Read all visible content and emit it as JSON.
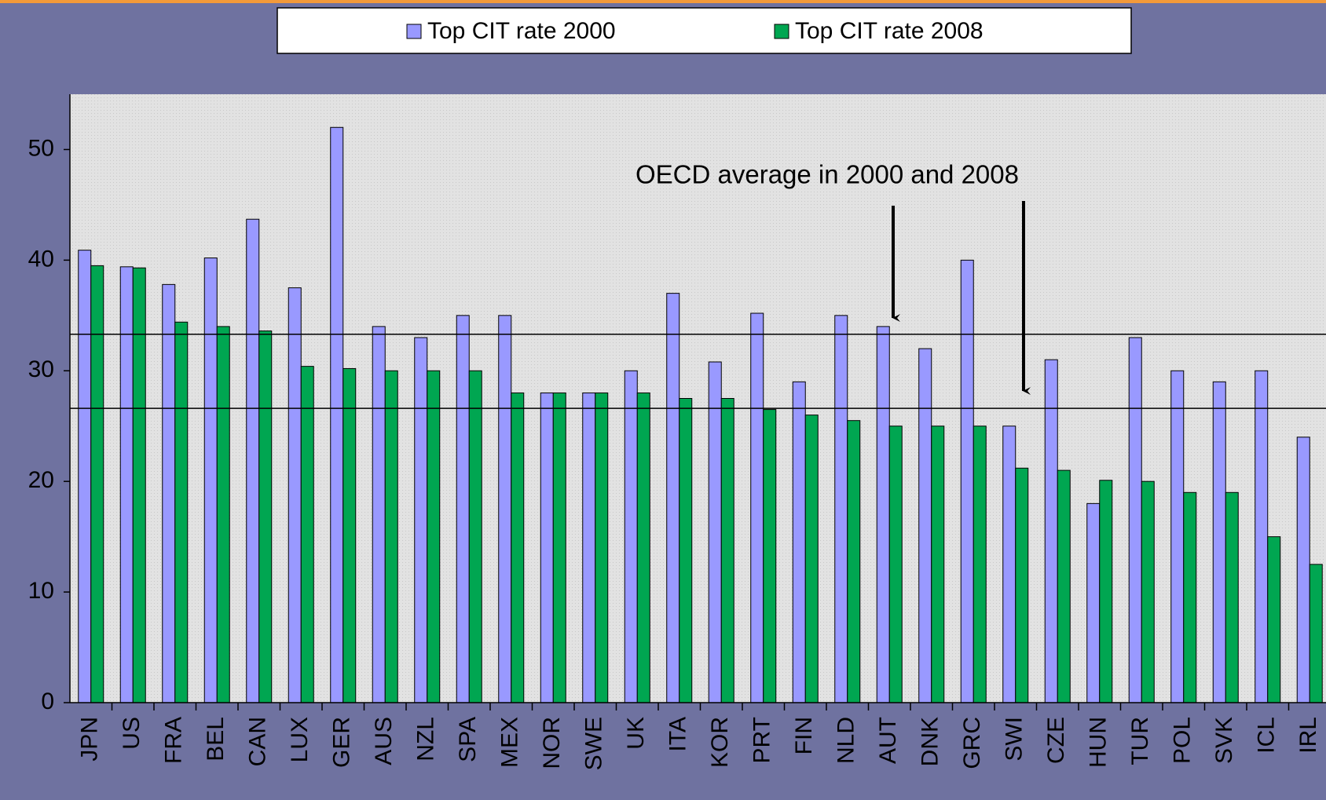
{
  "chart_data": {
    "type": "bar",
    "categories": [
      "JPN",
      "US",
      "FRA",
      "BEL",
      "CAN",
      "LUX",
      "GER",
      "AUS",
      "NZL",
      "SPA",
      "MEX",
      "NOR",
      "SWE",
      "UK",
      "ITA",
      "KOR",
      "PRT",
      "FIN",
      "NLD",
      "AUT",
      "DNK",
      "GRC",
      "SWI",
      "CZE",
      "HUN",
      "TUR",
      "POL",
      "SVK",
      "ICL",
      "IRL"
    ],
    "series": [
      {
        "name": "Top CIT rate 2000",
        "color": "#9999ff",
        "values": [
          40.9,
          39.4,
          37.8,
          40.2,
          43.7,
          37.5,
          52,
          34,
          33,
          35,
          35,
          28,
          28,
          30,
          37,
          30.8,
          35.2,
          29,
          35,
          34,
          32,
          40,
          25,
          31,
          18,
          33,
          30,
          29,
          30,
          24
        ]
      },
      {
        "name": "Top CIT rate 2008",
        "color": "#00a651",
        "values": [
          39.5,
          39.3,
          34.4,
          34,
          33.6,
          30.4,
          30.2,
          30,
          30,
          30,
          28,
          28,
          28,
          28,
          27.5,
          27.5,
          26.5,
          26,
          25.5,
          25,
          25,
          25,
          21.2,
          21,
          20.1,
          20,
          19,
          19,
          15,
          12.5
        ]
      }
    ],
    "reference_lines": [
      33.3,
      26.6
    ],
    "annotation": "OECD average in 2000 and 2008",
    "ylim": [
      0,
      55
    ],
    "yticks": [
      0,
      10,
      20,
      30,
      40,
      50
    ],
    "grid": false
  }
}
